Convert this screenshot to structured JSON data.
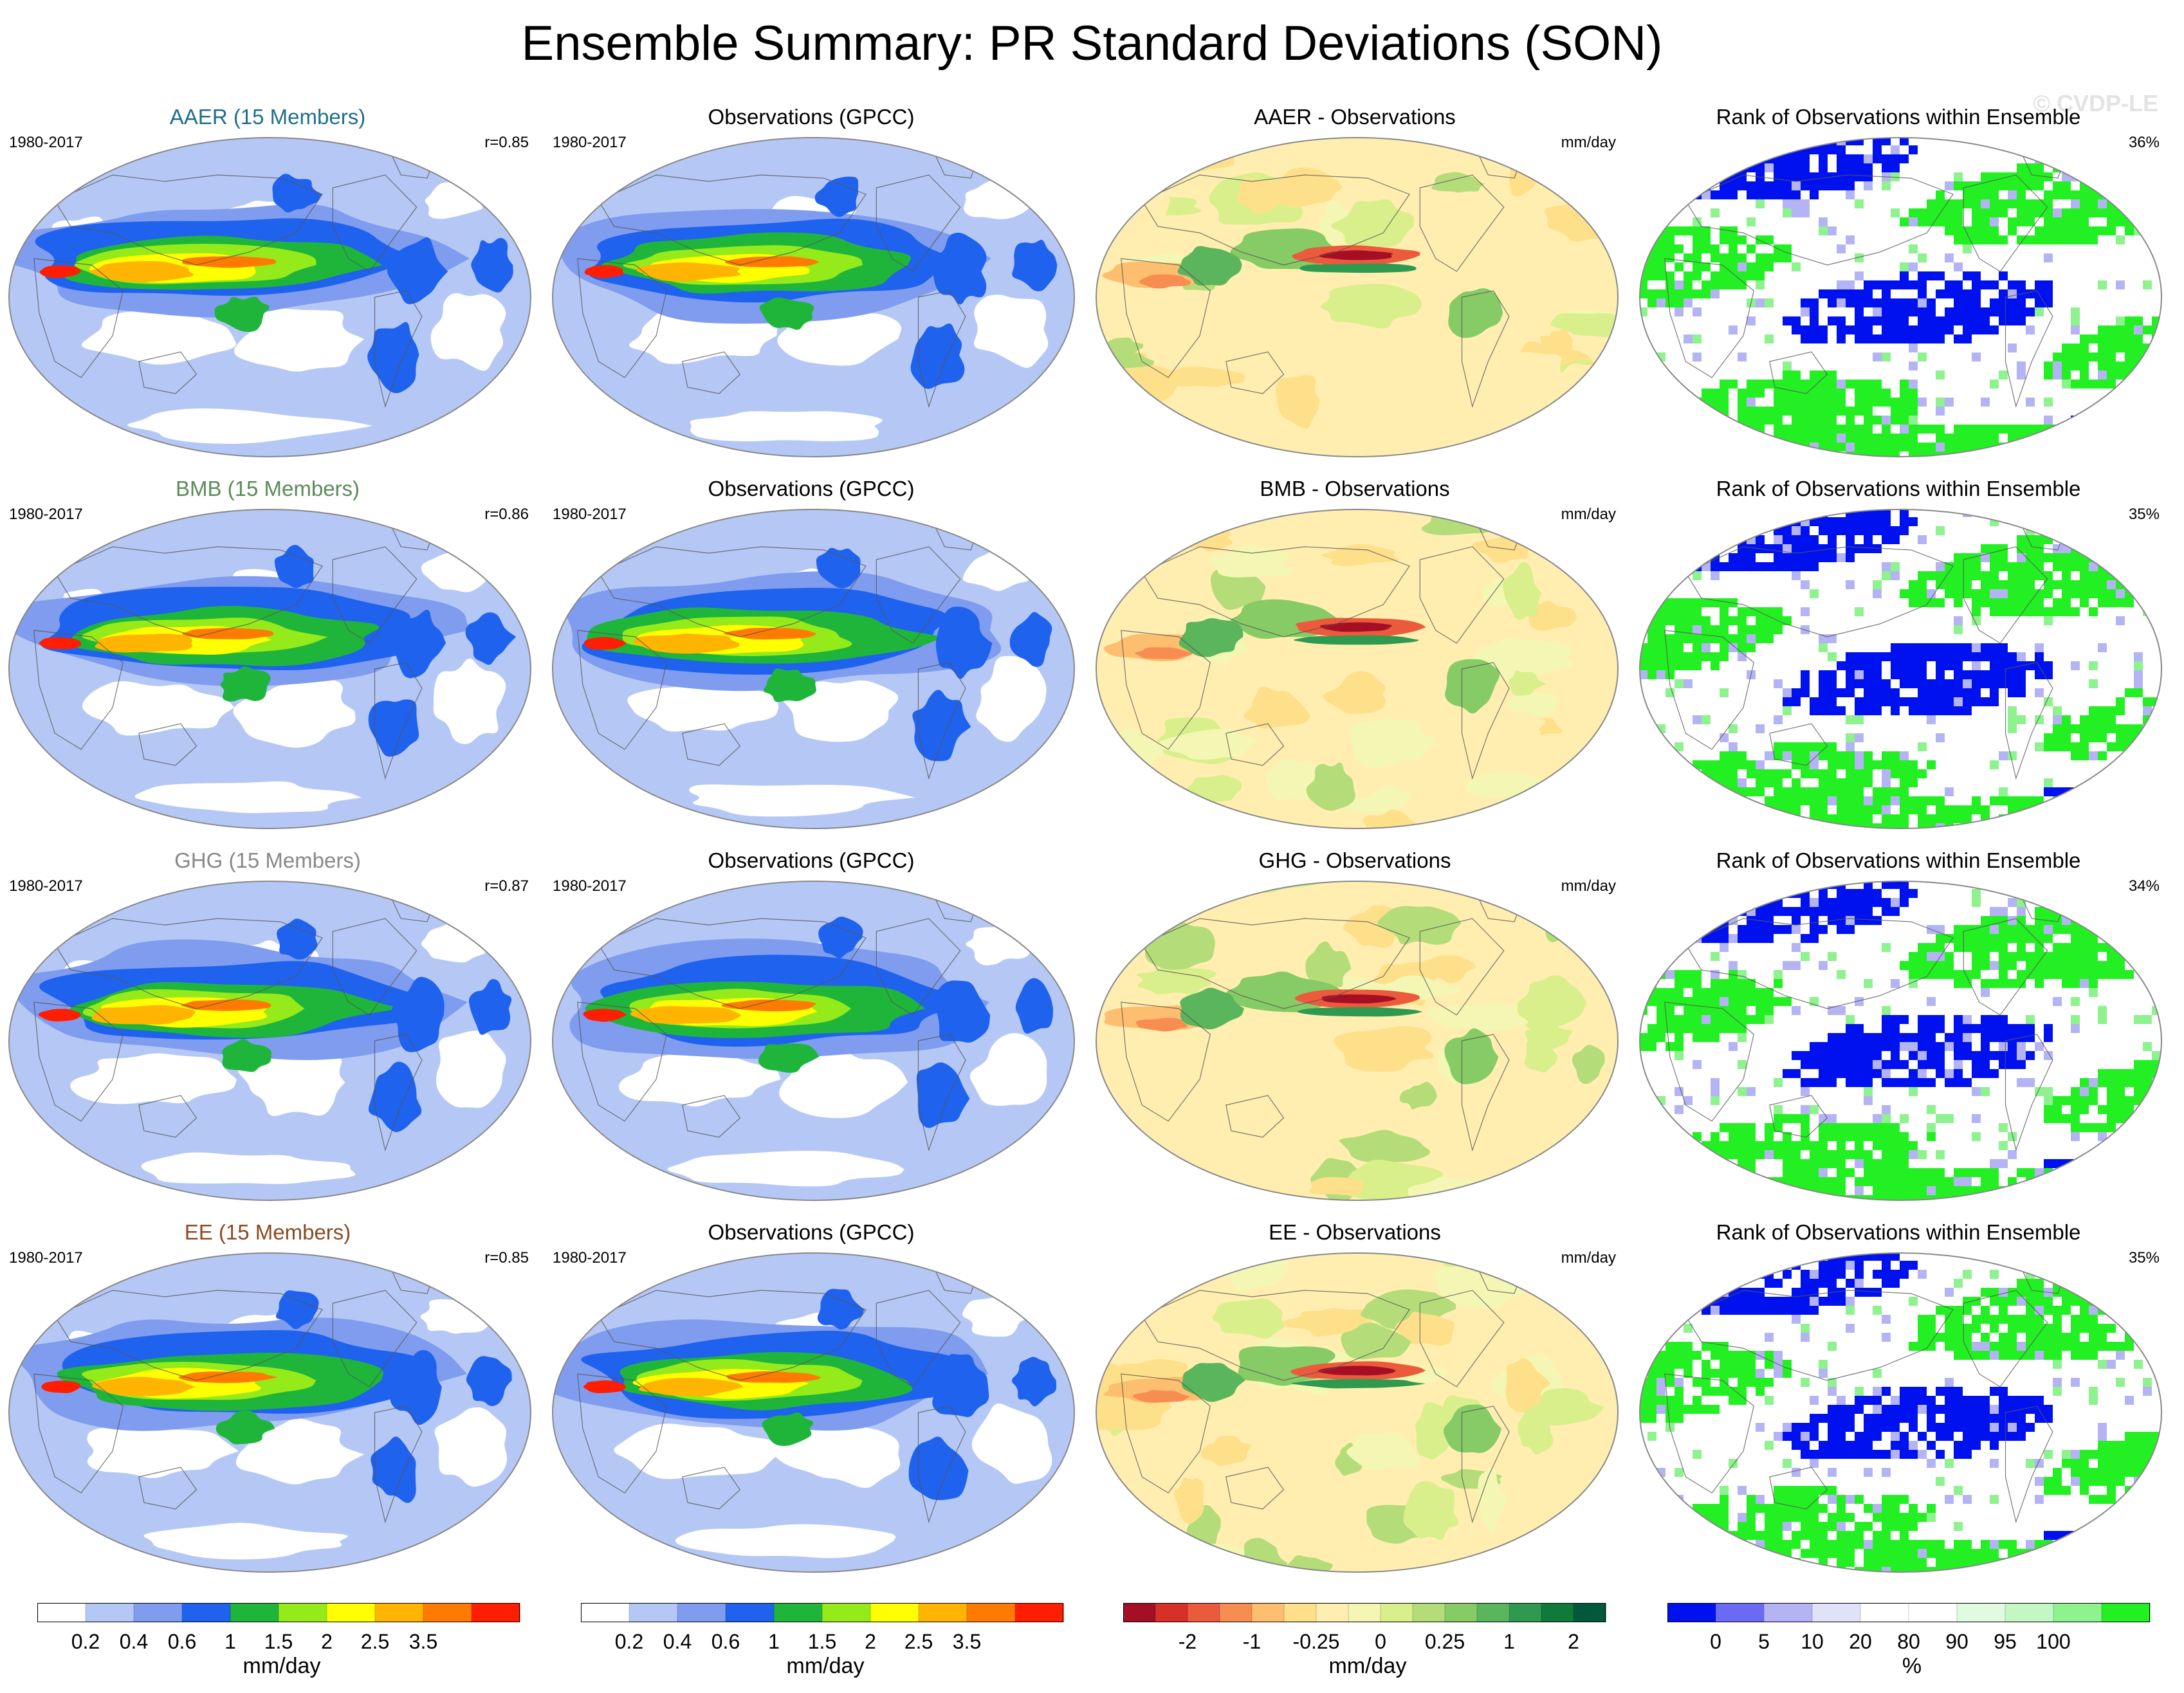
{
  "title": "Ensemble Summary: PR Standard Deviations (SON)",
  "watermark": "© CVDP-LE",
  "colors": {
    "AAER": "#1f6e8c",
    "BMB": "#5c8a5c",
    "GHG": "#888888",
    "EE": "#8a4a22"
  },
  "chart_data": [
    {
      "type": "heatmap",
      "row": 0,
      "col": 0,
      "kind": "std",
      "title": "AAER (15 Members)",
      "title_color": "#1f6e8c",
      "left_label": "1980-2017",
      "right_label": "r=0.85"
    },
    {
      "type": "heatmap",
      "row": 0,
      "col": 1,
      "kind": "std",
      "title": "Observations (GPCC)",
      "left_label": "1980-2017",
      "right_label": ""
    },
    {
      "type": "heatmap",
      "row": 0,
      "col": 2,
      "kind": "diff",
      "title": "AAER - Observations",
      "left_label": "",
      "right_label": "mm/day"
    },
    {
      "type": "heatmap",
      "row": 0,
      "col": 3,
      "kind": "rank",
      "title": "Rank of Observations within Ensemble",
      "left_label": "",
      "right_label": "36%"
    },
    {
      "type": "heatmap",
      "row": 1,
      "col": 0,
      "kind": "std",
      "title": "BMB (15 Members)",
      "title_color": "#5c8a5c",
      "left_label": "1980-2017",
      "right_label": "r=0.86"
    },
    {
      "type": "heatmap",
      "row": 1,
      "col": 1,
      "kind": "std",
      "title": "Observations (GPCC)",
      "left_label": "1980-2017",
      "right_label": ""
    },
    {
      "type": "heatmap",
      "row": 1,
      "col": 2,
      "kind": "diff",
      "title": "BMB - Observations",
      "left_label": "",
      "right_label": "mm/day"
    },
    {
      "type": "heatmap",
      "row": 1,
      "col": 3,
      "kind": "rank",
      "title": "Rank of Observations within Ensemble",
      "left_label": "",
      "right_label": "35%"
    },
    {
      "type": "heatmap",
      "row": 2,
      "col": 0,
      "kind": "std",
      "title": "GHG (15 Members)",
      "title_color": "#888888",
      "left_label": "1980-2017",
      "right_label": "r=0.87"
    },
    {
      "type": "heatmap",
      "row": 2,
      "col": 1,
      "kind": "std",
      "title": "Observations (GPCC)",
      "left_label": "1980-2017",
      "right_label": ""
    },
    {
      "type": "heatmap",
      "row": 2,
      "col": 2,
      "kind": "diff",
      "title": "GHG - Observations",
      "left_label": "",
      "right_label": "mm/day"
    },
    {
      "type": "heatmap",
      "row": 2,
      "col": 3,
      "kind": "rank",
      "title": "Rank of Observations within Ensemble",
      "left_label": "",
      "right_label": "34%"
    },
    {
      "type": "heatmap",
      "row": 3,
      "col": 0,
      "kind": "std",
      "title": "EE (15 Members)",
      "title_color": "#8a4a22",
      "left_label": "1980-2017",
      "right_label": "r=0.85"
    },
    {
      "type": "heatmap",
      "row": 3,
      "col": 1,
      "kind": "std",
      "title": "Observations (GPCC)",
      "left_label": "1980-2017",
      "right_label": ""
    },
    {
      "type": "heatmap",
      "row": 3,
      "col": 2,
      "kind": "diff",
      "title": "EE - Observations",
      "left_label": "",
      "right_label": "mm/day"
    },
    {
      "type": "heatmap",
      "row": 3,
      "col": 3,
      "kind": "rank",
      "title": "Rank of Observations within Ensemble",
      "left_label": "",
      "right_label": "35%"
    }
  ],
  "colorbars": [
    {
      "name": "std",
      "colors": [
        "#ffffff",
        "#b5c8f5",
        "#7f9cef",
        "#1f62ee",
        "#1fb53b",
        "#95ea1a",
        "#ffff00",
        "#ffb400",
        "#ff7a00",
        "#ff1e00"
      ],
      "ticks": [
        "0.2",
        "0.4",
        "0.6",
        "1",
        "1.5",
        "2",
        "2.5",
        "3.5"
      ],
      "unit": "mm/day"
    },
    {
      "name": "std",
      "colors": [
        "#ffffff",
        "#b5c8f5",
        "#7f9cef",
        "#1f62ee",
        "#1fb53b",
        "#95ea1a",
        "#ffff00",
        "#ffb400",
        "#ff7a00",
        "#ff1e00"
      ],
      "ticks": [
        "0.2",
        "0.4",
        "0.6",
        "1",
        "1.5",
        "2",
        "2.5",
        "3.5"
      ],
      "unit": "mm/day"
    },
    {
      "name": "diff",
      "colors": [
        "#a50f26",
        "#d73027",
        "#ec5a3c",
        "#f88d52",
        "#fdbe6f",
        "#fee08b",
        "#ffeeb0",
        "#f3f7b3",
        "#d9ef8b",
        "#b4dd7a",
        "#86cb66",
        "#5ab55c",
        "#2f9a4f",
        "#0f7a3a",
        "#00593a"
      ],
      "ticks": [
        "-2",
        "-1",
        "-0.25",
        "0",
        "0.25",
        "1",
        "2"
      ],
      "unit": "mm/day"
    },
    {
      "name": "rank",
      "colors": [
        "#0011f0",
        "#6a6af5",
        "#b4b4f5",
        "#e1e1f8",
        "#ffffff",
        "#ffffff",
        "#e0fbe0",
        "#c4f7c4",
        "#8ef28e",
        "#22f022"
      ],
      "ticks": [
        "0",
        "5",
        "10",
        "20",
        "80",
        "90",
        "95",
        "100"
      ],
      "unit": "%"
    }
  ]
}
